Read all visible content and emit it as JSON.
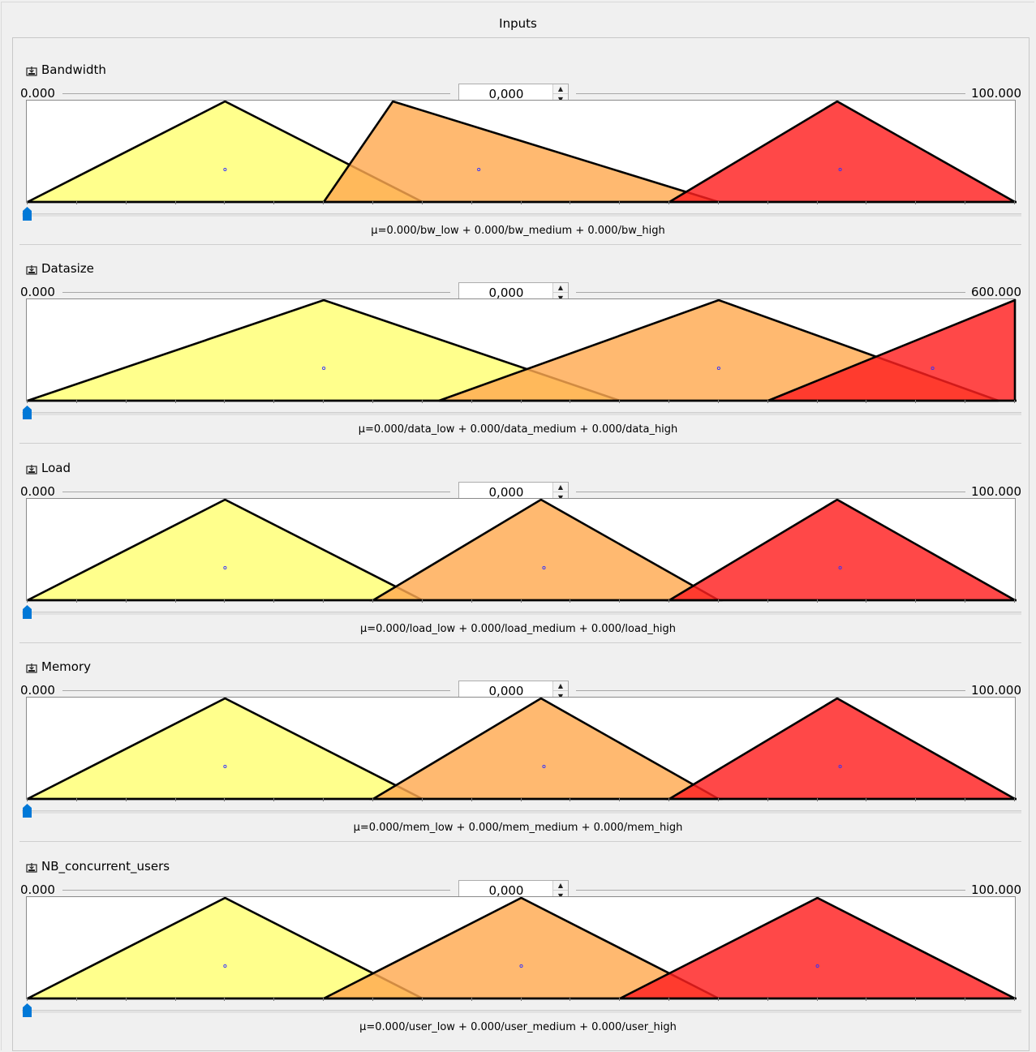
{
  "panel_title": "Inputs",
  "colors": {
    "low": "#ffff8c",
    "medium": "#ffa950",
    "high": "#ff2020"
  },
  "variables": [
    {
      "name": "Bandwidth",
      "min": "0.000",
      "max": "100.000",
      "value": "0,000",
      "range": [
        0,
        100
      ],
      "slider_value": 0,
      "formula": "μ=0.000/bw_low + 0.000/bw_medium + 0.000/bw_high",
      "terms": [
        {
          "name": "bw_low",
          "points": [
            0,
            20,
            40
          ],
          "centroid": 20
        },
        {
          "name": "bw_medium",
          "points": [
            30,
            37,
            70
          ],
          "centroid": 45.7
        },
        {
          "name": "bw_high",
          "points": [
            65,
            82,
            100
          ],
          "centroid": 82.3
        }
      ]
    },
    {
      "name": "Datasize",
      "min": "0.000",
      "max": "600.000",
      "value": "0,000",
      "range": [
        0,
        600
      ],
      "slider_value": 0,
      "formula": "μ=0.000/data_low + 0.000/data_medium + 0.000/data_high",
      "terms": [
        {
          "name": "data_low",
          "points": [
            0,
            180,
            360
          ],
          "centroid": 180
        },
        {
          "name": "data_medium",
          "points": [
            250,
            420,
            590
          ],
          "centroid": 420
        },
        {
          "name": "data_high",
          "points": [
            450,
            600,
            600
          ],
          "centroid": 550
        }
      ]
    },
    {
      "name": "Load",
      "min": "0.000",
      "max": "100.000",
      "value": "0,000",
      "range": [
        0,
        100
      ],
      "slider_value": 0,
      "formula": "μ=0.000/load_low + 0.000/load_medium + 0.000/load_high",
      "terms": [
        {
          "name": "load_low",
          "points": [
            0,
            20,
            40
          ],
          "centroid": 20
        },
        {
          "name": "load_medium",
          "points": [
            35,
            52,
            70
          ],
          "centroid": 52.3
        },
        {
          "name": "load_high",
          "points": [
            65,
            82,
            100
          ],
          "centroid": 82.3
        }
      ]
    },
    {
      "name": "Memory",
      "min": "0.000",
      "max": "100.000",
      "value": "0,000",
      "range": [
        0,
        100
      ],
      "slider_value": 0,
      "formula": "μ=0.000/mem_low + 0.000/mem_medium + 0.000/mem_high",
      "terms": [
        {
          "name": "mem_low",
          "points": [
            0,
            20,
            40
          ],
          "centroid": 20
        },
        {
          "name": "mem_medium",
          "points": [
            35,
            52,
            70
          ],
          "centroid": 52.3
        },
        {
          "name": "mem_high",
          "points": [
            65,
            82,
            100
          ],
          "centroid": 82.3
        }
      ]
    },
    {
      "name": "NB_concurrent_users",
      "min": "0.000",
      "max": "100.000",
      "value": "0,000",
      "range": [
        0,
        100
      ],
      "slider_value": 0,
      "formula": "μ=0.000/user_low + 0.000/user_medium + 0.000/user_high",
      "terms": [
        {
          "name": "user_low",
          "points": [
            0,
            20,
            40
          ],
          "centroid": 20
        },
        {
          "name": "user_medium",
          "points": [
            30,
            50,
            70
          ],
          "centroid": 50
        },
        {
          "name": "user_high",
          "points": [
            60,
            80,
            100
          ],
          "centroid": 80
        }
      ]
    }
  ]
}
